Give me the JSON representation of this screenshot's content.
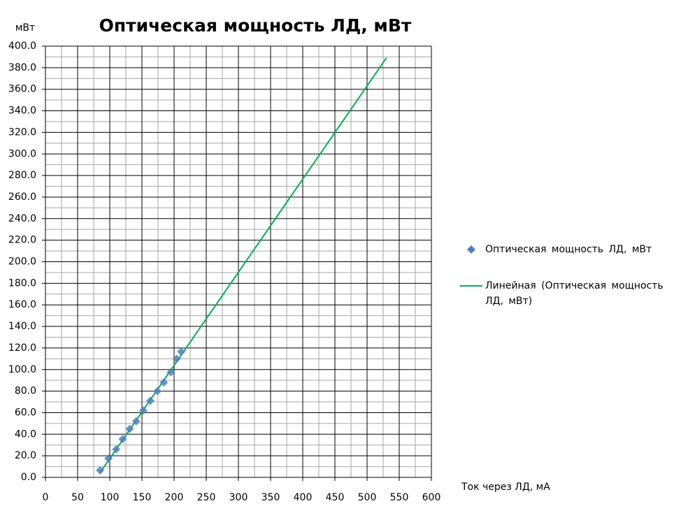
{
  "chart_data": {
    "type": "scatter",
    "title": "Оптическая мощность ЛД, мВт",
    "y_label": "мВт",
    "x_label": "Ток через ЛД, мА",
    "xlim": [
      0,
      600
    ],
    "xticks": [
      0,
      50,
      100,
      150,
      200,
      250,
      300,
      350,
      400,
      450,
      500,
      550,
      600
    ],
    "ylim": [
      0,
      400
    ],
    "yticks": [
      {
        "value": 0,
        "label": "0.0"
      },
      {
        "value": 20,
        "label": "20.0"
      },
      {
        "value": 40,
        "label": "40.0"
      },
      {
        "value": 60,
        "label": "60.0"
      },
      {
        "value": 80,
        "label": "80.0"
      },
      {
        "value": 100,
        "label": "100.0"
      },
      {
        "value": 120,
        "label": "120.0"
      },
      {
        "value": 140,
        "label": "140.0"
      },
      {
        "value": 160,
        "label": "160.0"
      },
      {
        "value": 180,
        "label": "180.0"
      },
      {
        "value": 200,
        "label": "200.0"
      },
      {
        "value": 220,
        "label": "220.0"
      },
      {
        "value": 240,
        "label": "240.0"
      },
      {
        "value": 260,
        "label": "260.0"
      },
      {
        "value": 280,
        "label": "280.0"
      },
      {
        "value": 300,
        "label": "300.0"
      },
      {
        "value": 320,
        "label": "320.0"
      },
      {
        "value": 340,
        "label": "340.0"
      },
      {
        "value": 360,
        "label": "360.0"
      },
      {
        "value": 380,
        "label": "380.0"
      },
      {
        "value": 400,
        "label": "400.0"
      }
    ],
    "grid": true,
    "legend": "right",
    "series": [
      {
        "name": "Оптическая мощность ЛД, мВт",
        "color": "#4f81bd",
        "mode": "markers",
        "x": [
          85,
          98,
          110,
          120,
          131,
          141,
          152,
          163,
          174,
          184,
          195,
          204,
          211
        ],
        "values": [
          6.5,
          17.5,
          26,
          35.5,
          45,
          52,
          62,
          71,
          80,
          88,
          97.5,
          110,
          116.5
        ]
      },
      {
        "name": "Линейная (Оптическая мощность ЛД, мВт)",
        "color": "#00b050",
        "mode": "lines",
        "x": [
          85,
          530
        ],
        "values": [
          4.5,
          389
        ]
      }
    ]
  }
}
